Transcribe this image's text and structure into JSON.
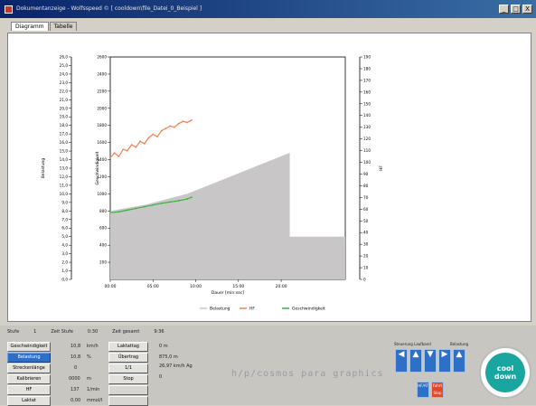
{
  "window": {
    "title": "Dokumentanzeige - Wolfsspeed © [ cooldown\\file_Datei_0_Beispiel ]",
    "controls": [
      "_",
      "□",
      "X"
    ]
  },
  "tabs": [
    {
      "label": "Diagramm",
      "active": true
    },
    {
      "label": "Tabelle",
      "active": false
    }
  ],
  "chart_data": {
    "type": "line",
    "xlabel": "Dauer [min:sec]",
    "x_ticks": [
      "00:00",
      "05:00",
      "10:00",
      "15:00",
      "20:00"
    ],
    "xlim": [
      0,
      27.5
    ],
    "left_axis": {
      "label": "Belastung",
      "ticks": [
        "0,0",
        "1,0",
        "2,0",
        "3,0",
        "4,0",
        "5,0",
        "6,0",
        "7,0",
        "8,0",
        "9,0",
        "10,0",
        "11,0",
        "12,0",
        "13,0",
        "14,0",
        "15,0",
        "16,0",
        "17,0",
        "18,0",
        "19,0",
        "20,0",
        "21,0",
        "22,0",
        "23,0",
        "24,0",
        "25,0",
        "26,0"
      ],
      "ylim": [
        0,
        26
      ]
    },
    "inner_axis": {
      "label": "Geschwindigkeit",
      "ticks": [
        "0",
        "200",
        "400",
        "600",
        "800",
        "1000",
        "1200",
        "1400",
        "1600",
        "1800",
        "2000",
        "2200",
        "2400",
        "2600"
      ],
      "ylim": [
        0,
        2600
      ]
    },
    "right_axis": {
      "label": "HF",
      "ticks": [
        "0",
        "10",
        "20",
        "30",
        "40",
        "50",
        "60",
        "70",
        "80",
        "90",
        "100",
        "110",
        "120",
        "130",
        "140",
        "150",
        "160",
        "170",
        "180",
        "190"
      ],
      "ylim": [
        0,
        190
      ]
    },
    "series": [
      {
        "name": "Belastung",
        "color": "#c8c6c6",
        "type": "area",
        "axis": "left",
        "x": [
          0,
          4,
          9,
          21,
          21,
          27.5
        ],
        "y": [
          8,
          8.7,
          10,
          14.8,
          5,
          5
        ]
      },
      {
        "name": "HF",
        "color": "#f08050",
        "axis": "right",
        "x": [
          0,
          0.5,
          1,
          1.5,
          2,
          2.5,
          3,
          3.5,
          4,
          4.5,
          5,
          5.5,
          6,
          6.5,
          7,
          7.5,
          8,
          8.5,
          9,
          9.5
        ],
        "y": [
          104,
          108,
          105,
          111,
          110,
          115,
          113,
          118,
          116,
          121,
          124,
          122,
          127,
          129,
          131,
          130,
          133,
          135,
          134,
          136
        ]
      },
      {
        "name": "Geschwindigkeit",
        "color": "#3cb043",
        "axis": "inner",
        "x": [
          0,
          1,
          2,
          3,
          4,
          5,
          6,
          7,
          8,
          9,
          9.5
        ],
        "y": [
          780,
          790,
          810,
          830,
          850,
          870,
          890,
          905,
          920,
          940,
          960
        ]
      }
    ],
    "legend": "bottom"
  },
  "status": {
    "stufe_label": "Stufe",
    "stufe_value": "1",
    "zeit_stufe_label": "Zeit Stufe",
    "zeit_stufe_value": "0:30",
    "zeit_gesamt_label": "Zeit gesamt",
    "zeit_gesamt_value": "9:36"
  },
  "controls": {
    "left_buttons": [
      "Geschwindigkeit",
      "Belastung",
      "Streckenlänge",
      "Kalibrieren",
      "HF",
      "Laktat"
    ],
    "left_values": [
      {
        "value": "10,8",
        "unit": "km/h"
      },
      {
        "value": "10,8",
        "unit": "%"
      },
      {
        "value": "0",
        "unit": ""
      },
      {
        "value": "0000",
        "unit": "m"
      },
      {
        "value": "137",
        "unit": "1/min"
      },
      {
        "value": "0,00",
        "unit": "mmol/l"
      }
    ],
    "mid_buttons": [
      "Laktattag",
      "Übertrag",
      "1/1",
      "Stop"
    ],
    "mid_values": [
      "0    m",
      "875,0    m",
      "26,97 km/h Ag",
      "0"
    ]
  },
  "brand": "h/p/cosmos para graphics",
  "nav": {
    "label1": "Steuerung Laufband",
    "label2": "Belastung",
    "small1": "HF/AT",
    "small2": "Fahrt Stop"
  },
  "cooldown": {
    "line1": "cool",
    "line2": "down"
  }
}
